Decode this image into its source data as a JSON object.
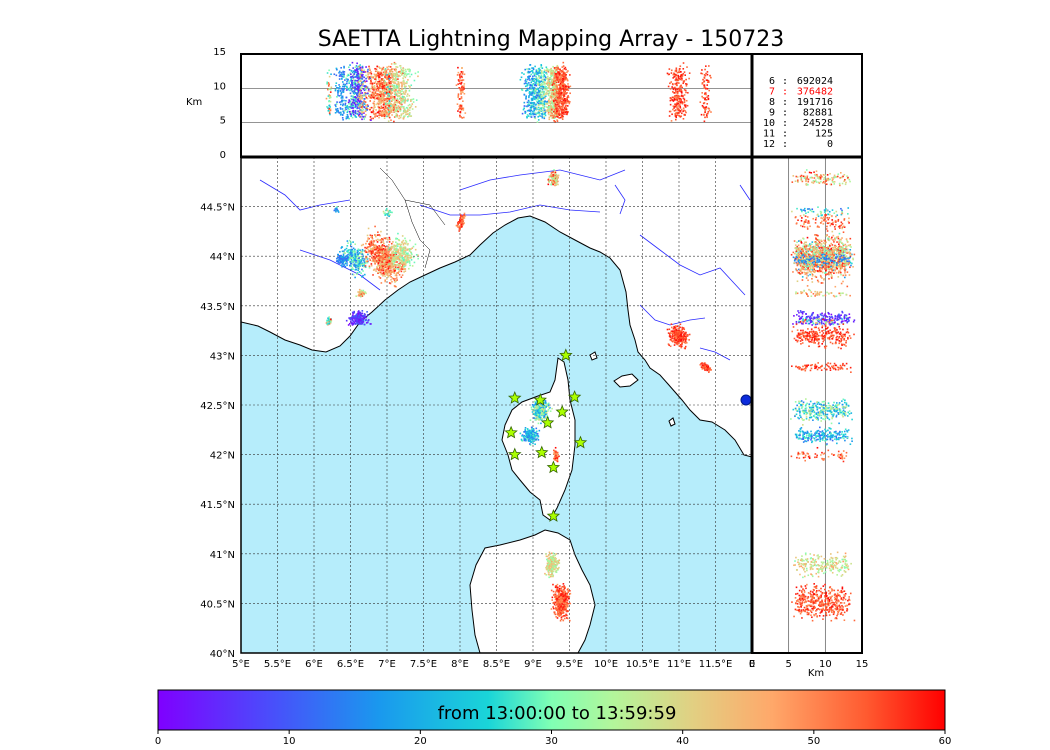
{
  "title": "SAETTA Lightning Mapping Array - 150723",
  "colors": {
    "sea": "#b6edfb",
    "land": "#ffffff",
    "coast": "#000000",
    "rivers": "#2a2aff",
    "highlight_row": "#ff0000",
    "station": "#aaff00",
    "station_edge": "#336600"
  },
  "map": {
    "lon_range": [
      5,
      12
    ],
    "lat_range": [
      40,
      45
    ],
    "lon_ticks": [
      "5°E",
      "5.5°E",
      "6°E",
      "6.5°E",
      "7°E",
      "7.5°E",
      "8°E",
      "8.5°E",
      "9°E",
      "9.5°E",
      "10°E",
      "10.5°E",
      "11°E",
      "11.5°E",
      "E"
    ],
    "lat_ticks": [
      "40°N",
      "40.5°N",
      "41°N",
      "41.5°N",
      "42°N",
      "42.5°N",
      "43°N",
      "43.5°N",
      "44°N",
      "44.5°N"
    ],
    "grid": true,
    "stations": [
      {
        "lon": 9.45,
        "lat": 43.0
      },
      {
        "lon": 8.75,
        "lat": 42.57
      },
      {
        "lon": 9.1,
        "lat": 42.55
      },
      {
        "lon": 9.57,
        "lat": 42.58
      },
      {
        "lon": 9.4,
        "lat": 42.43
      },
      {
        "lon": 9.2,
        "lat": 42.32
      },
      {
        "lon": 8.7,
        "lat": 42.22
      },
      {
        "lon": 9.65,
        "lat": 42.12
      },
      {
        "lon": 8.75,
        "lat": 42.0
      },
      {
        "lon": 9.12,
        "lat": 42.02
      },
      {
        "lon": 9.28,
        "lat": 41.87
      },
      {
        "lon": 9.28,
        "lat": 41.38
      }
    ]
  },
  "altitude_panel": {
    "ylabel": "Km",
    "yticks": [
      "0",
      "5",
      "10",
      "15"
    ],
    "y_range": [
      0,
      15
    ]
  },
  "side_panel": {
    "xlabel": "Km",
    "xticks": [
      "0",
      "5",
      "10",
      "15"
    ],
    "x_range": [
      0,
      15
    ]
  },
  "stats": [
    {
      "k": "6",
      "v": "692024",
      "hl": false
    },
    {
      "k": "7",
      "v": "376482",
      "hl": true
    },
    {
      "k": "8",
      "v": "191716",
      "hl": false
    },
    {
      "k": "9",
      "v": "82881",
      "hl": false
    },
    {
      "k": "10",
      "v": "24528",
      "hl": false
    },
    {
      "k": "11",
      "v": "125",
      "hl": false
    },
    {
      "k": "12",
      "v": "0",
      "hl": false
    }
  ],
  "colorbar": {
    "label": "from 13:00:00 to 13:59:59",
    "ticks": [
      "0",
      "10",
      "20",
      "30",
      "40",
      "50",
      "60"
    ],
    "range": [
      0,
      60
    ],
    "colormap": "rainbow"
  },
  "clusters": [
    {
      "lon": 6.55,
      "lat": 43.98,
      "rx": 0.25,
      "ry": 0.18,
      "tmin": 12,
      "tmax": 35,
      "n": 260,
      "rot": -40
    },
    {
      "lon": 6.95,
      "lat": 43.98,
      "rx": 0.4,
      "ry": 0.24,
      "tmin": 40,
      "tmax": 60,
      "n": 700,
      "rot": -35
    },
    {
      "lon": 7.2,
      "lat": 44.02,
      "rx": 0.25,
      "ry": 0.22,
      "tmin": 28,
      "tmax": 45,
      "n": 250,
      "rot": -35
    },
    {
      "lon": 6.38,
      "lat": 43.97,
      "rx": 0.1,
      "ry": 0.08,
      "tmin": 10,
      "tmax": 20,
      "n": 90,
      "rot": 0
    },
    {
      "lon": 6.6,
      "lat": 43.38,
      "rx": 0.18,
      "ry": 0.1,
      "tmin": 0,
      "tmax": 12,
      "n": 180,
      "rot": 0
    },
    {
      "lon": 6.2,
      "lat": 43.35,
      "rx": 0.05,
      "ry": 0.05,
      "tmin": 20,
      "tmax": 60,
      "n": 40,
      "rot": 0
    },
    {
      "lon": 6.63,
      "lat": 43.63,
      "rx": 0.08,
      "ry": 0.05,
      "tmin": 30,
      "tmax": 55,
      "n": 50,
      "rot": 0
    },
    {
      "lon": 6.3,
      "lat": 44.48,
      "rx": 0.05,
      "ry": 0.04,
      "tmin": 10,
      "tmax": 30,
      "n": 20,
      "rot": 0
    },
    {
      "lon": 7.0,
      "lat": 44.45,
      "rx": 0.1,
      "ry": 0.06,
      "tmin": 20,
      "tmax": 40,
      "n": 30,
      "rot": 0
    },
    {
      "lon": 8.0,
      "lat": 44.35,
      "rx": 0.05,
      "ry": 0.12,
      "tmin": 45,
      "tmax": 60,
      "n": 90,
      "rot": -25
    },
    {
      "lon": 9.28,
      "lat": 44.79,
      "rx": 0.1,
      "ry": 0.1,
      "tmin": 30,
      "tmax": 60,
      "n": 120,
      "rot": 0
    },
    {
      "lon": 10.98,
      "lat": 43.2,
      "rx": 0.18,
      "ry": 0.14,
      "tmin": 50,
      "tmax": 60,
      "n": 250,
      "rot": 0
    },
    {
      "lon": 11.35,
      "lat": 42.89,
      "rx": 0.1,
      "ry": 0.05,
      "tmin": 50,
      "tmax": 60,
      "n": 80,
      "rot": -20
    },
    {
      "lon": 9.1,
      "lat": 42.45,
      "rx": 0.17,
      "ry": 0.15,
      "tmin": 14,
      "tmax": 40,
      "n": 300,
      "rot": 0
    },
    {
      "lon": 8.95,
      "lat": 42.2,
      "rx": 0.15,
      "ry": 0.1,
      "tmin": 10,
      "tmax": 30,
      "n": 200,
      "rot": 0
    },
    {
      "lon": 9.3,
      "lat": 42.0,
      "rx": 0.05,
      "ry": 0.1,
      "tmin": 45,
      "tmax": 60,
      "n": 60,
      "rot": 0
    },
    {
      "lon": 9.25,
      "lat": 40.9,
      "rx": 0.12,
      "ry": 0.14,
      "tmin": 30,
      "tmax": 48,
      "n": 200,
      "rot": 0
    },
    {
      "lon": 9.38,
      "lat": 40.52,
      "rx": 0.16,
      "ry": 0.22,
      "tmin": 48,
      "tmax": 60,
      "n": 420,
      "rot": 0
    }
  ]
}
